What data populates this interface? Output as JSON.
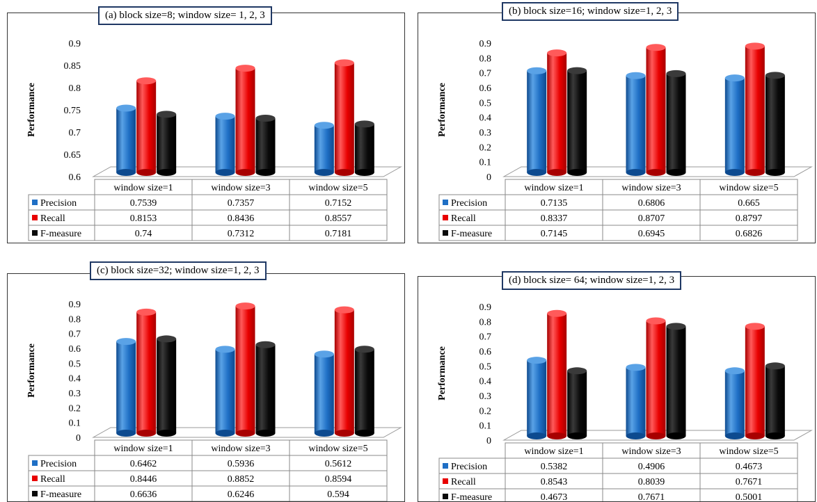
{
  "chart_data": [
    {
      "type": "bar",
      "title": "(a) block size=8; window size= 1, 2, 3",
      "ylabel": "Performance",
      "ylim": [
        0.6,
        0.9
      ],
      "yticks": [
        "0.6",
        "0.65",
        "0.7",
        "0.75",
        "0.8",
        "0.85",
        "0.9"
      ],
      "categories": [
        "window size=1",
        "window size=3",
        "window size=5"
      ],
      "series": [
        {
          "name": "Precision",
          "values": [
            0.7539,
            0.7357,
            0.7152
          ],
          "labels": [
            "0.7539",
            "0.7357",
            "0.7152"
          ]
        },
        {
          "name": "Recall",
          "values": [
            0.8153,
            0.8436,
            0.8557
          ],
          "labels": [
            "0.8153",
            "0.8436",
            "0.8557"
          ]
        },
        {
          "name": "F-measure",
          "values": [
            0.74,
            0.7312,
            0.7181
          ],
          "labels": [
            "0.74",
            "0.7312",
            "0.7181"
          ]
        }
      ]
    },
    {
      "type": "bar",
      "title": "(b) block size=16;  window size=1, 2, 3",
      "ylabel": "Performance",
      "ylim": [
        0,
        0.9
      ],
      "yticks": [
        "0",
        "0.1",
        "0.2",
        "0.3",
        "0.4",
        "0.5",
        "0.6",
        "0.7",
        "0.8",
        "0.9"
      ],
      "categories": [
        "window size=1",
        "window size=3",
        "window size=5"
      ],
      "series": [
        {
          "name": "Precision",
          "values": [
            0.7135,
            0.6806,
            0.665
          ],
          "labels": [
            "0.7135",
            "0.6806",
            "0.665"
          ]
        },
        {
          "name": "Recall",
          "values": [
            0.8337,
            0.8707,
            0.8797
          ],
          "labels": [
            "0.8337",
            "0.8707",
            "0.8797"
          ]
        },
        {
          "name": "F-measure",
          "values": [
            0.7145,
            0.6945,
            0.6826
          ],
          "labels": [
            "0.7145",
            "0.6945",
            "0.6826"
          ]
        }
      ]
    },
    {
      "type": "bar",
      "title": "(c) block size=32; window size=1, 2, 3",
      "ylabel": "Performance",
      "ylim": [
        0,
        0.9
      ],
      "yticks": [
        "0",
        "0.1",
        "0.2",
        "0.3",
        "0.4",
        "0.5",
        "0.6",
        "0.7",
        "0.8",
        "0.9"
      ],
      "categories": [
        "window size=1",
        "window size=3",
        "window size=5"
      ],
      "series": [
        {
          "name": "Precision",
          "values": [
            0.6462,
            0.5936,
            0.5612
          ],
          "labels": [
            "0.6462",
            "0.5936",
            "0.5612"
          ]
        },
        {
          "name": "Recall",
          "values": [
            0.8446,
            0.8852,
            0.8594
          ],
          "labels": [
            "0.8446",
            "0.8852",
            "0.8594"
          ]
        },
        {
          "name": "F-measure",
          "values": [
            0.6636,
            0.6246,
            0.594
          ],
          "labels": [
            "0.6636",
            "0.6246",
            "0.594"
          ]
        }
      ]
    },
    {
      "type": "bar",
      "title": "(d) block size= 64; window size=1, 2, 3",
      "ylabel": "Performance",
      "ylim": [
        0,
        0.9
      ],
      "yticks": [
        "0",
        "0.1",
        "0.2",
        "0.3",
        "0.4",
        "0.5",
        "0.6",
        "0.7",
        "0.8",
        "0.9"
      ],
      "categories": [
        "window size=1",
        "window size=3",
        "window size=5"
      ],
      "series": [
        {
          "name": "Precision",
          "values": [
            0.5382,
            0.4906,
            0.4673
          ],
          "labels": [
            "0.5382",
            "0.4906",
            "0.4673"
          ]
        },
        {
          "name": "Recall",
          "values": [
            0.8543,
            0.8039,
            0.7671
          ],
          "labels": [
            "0.8543",
            "0.8039",
            "0.7671"
          ]
        },
        {
          "name": "F-measure",
          "values": [
            0.4673,
            0.7671,
            0.5001
          ],
          "labels": [
            "0.4673",
            "0.7671",
            "0.5001"
          ]
        }
      ]
    }
  ],
  "colors": {
    "Precision": "#1f6fc5",
    "Recall": "#e80000",
    "F-measure": "#0a0a0a",
    "border": "#333333",
    "title_border": "#1f3864"
  }
}
